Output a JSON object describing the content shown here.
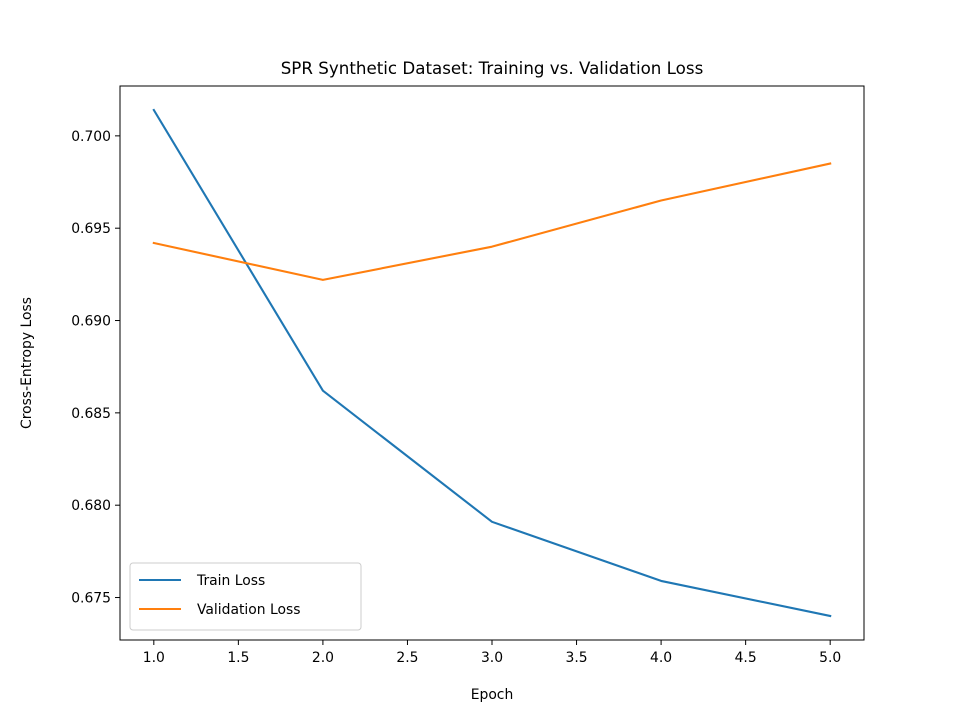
{
  "chart_data": {
    "type": "line",
    "title": "SPR Synthetic Dataset: Training vs. Validation Loss",
    "xlabel": "Epoch",
    "ylabel": "Cross-Entropy Loss",
    "x": [
      1.0,
      2.0,
      3.0,
      4.0,
      5.0
    ],
    "series": [
      {
        "name": "Train Loss",
        "color": "#1f77b4",
        "values": [
          0.7014,
          0.6862,
          0.6791,
          0.6759,
          0.674
        ]
      },
      {
        "name": "Validation Loss",
        "color": "#ff7f0e",
        "values": [
          0.6942,
          0.6922,
          0.694,
          0.6965,
          0.6985
        ]
      }
    ],
    "xlim": [
      0.8,
      5.2
    ],
    "ylim": [
      0.6727,
      0.7027
    ],
    "xticks": [
      "1.0",
      "1.5",
      "2.0",
      "2.5",
      "3.0",
      "3.5",
      "4.0",
      "4.5",
      "5.0"
    ],
    "yticks": [
      "0.675",
      "0.680",
      "0.685",
      "0.690",
      "0.695",
      "0.700"
    ],
    "grid": false,
    "legend_position": "lower-left"
  }
}
